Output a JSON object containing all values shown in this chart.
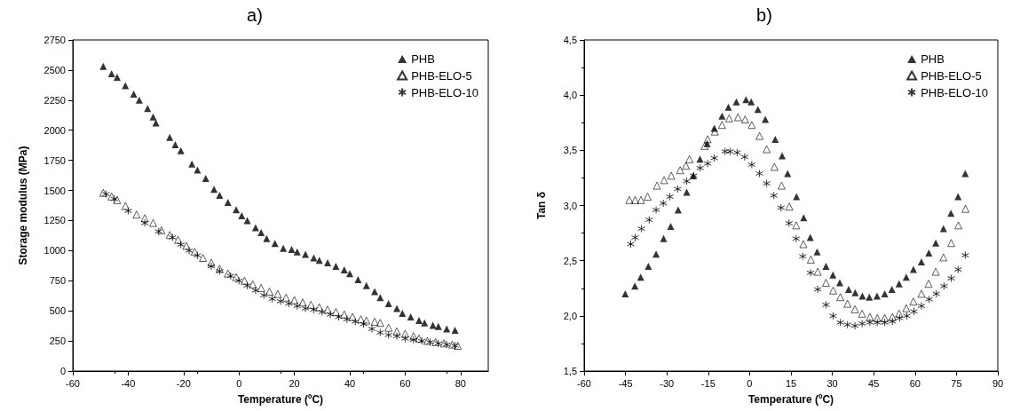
{
  "chart_data": [
    {
      "type": "scatter",
      "title": "a)",
      "xlabel": "Temperature (ºC)",
      "ylabel": "Storage modulus (MPa)",
      "xlim": [
        -60,
        90
      ],
      "xticks": [
        -60,
        -40,
        -20,
        0,
        20,
        40,
        60,
        80
      ],
      "ylim": [
        0,
        2750
      ],
      "yticks": [
        0,
        250,
        500,
        750,
        1000,
        1250,
        1500,
        1750,
        2000,
        2250,
        2500,
        2750
      ],
      "grid": false,
      "legend": "top right",
      "series": [
        {
          "name": "PHB",
          "color": "#000000",
          "marker": "triangle",
          "x": [
            -49,
            -46,
            -44,
            -41,
            -38,
            -36,
            -33,
            -31,
            -30,
            -25,
            -23,
            -21,
            -17,
            -15,
            -12,
            -9,
            -7,
            -4,
            -1,
            1,
            3,
            6,
            8,
            10,
            13,
            16,
            19,
            21,
            24,
            27,
            29,
            32,
            35,
            38,
            40,
            43,
            46,
            49,
            51,
            54,
            57,
            59,
            62,
            65,
            67,
            70,
            72,
            75,
            78
          ],
          "values": [
            2530,
            2470,
            2440,
            2370,
            2300,
            2250,
            2180,
            2110,
            2060,
            1940,
            1880,
            1830,
            1720,
            1670,
            1600,
            1510,
            1460,
            1400,
            1340,
            1290,
            1250,
            1190,
            1150,
            1100,
            1060,
            1020,
            1010,
            990,
            970,
            940,
            920,
            900,
            870,
            840,
            810,
            760,
            710,
            660,
            610,
            560,
            520,
            480,
            450,
            420,
            400,
            380,
            370,
            350,
            340
          ]
        },
        {
          "name": "PHB-ELO-5",
          "color": "#000000",
          "marker": "triangle-open",
          "x": [
            -49,
            -46,
            -44,
            -41,
            -37,
            -34,
            -31,
            -28,
            -25,
            -22,
            -19,
            -16,
            -13,
            -10,
            -7,
            -4,
            -1,
            2,
            5,
            8,
            11,
            14,
            17,
            20,
            23,
            26,
            29,
            32,
            35,
            38,
            41,
            44,
            46,
            49,
            51,
            54,
            57,
            60,
            63,
            65,
            68,
            71,
            74,
            77,
            79
          ],
          "values": [
            1480,
            1450,
            1420,
            1370,
            1300,
            1270,
            1230,
            1170,
            1130,
            1090,
            1040,
            990,
            940,
            900,
            850,
            810,
            780,
            750,
            720,
            690,
            660,
            640,
            610,
            590,
            570,
            550,
            530,
            510,
            490,
            470,
            450,
            430,
            420,
            410,
            400,
            360,
            330,
            310,
            290,
            270,
            250,
            240,
            230,
            220,
            210
          ]
        },
        {
          "name": "PHB-ELO-10",
          "color": "#000000",
          "marker": "cross",
          "x": [
            -48,
            -45,
            -40,
            -34,
            -29,
            -24,
            -21,
            -18,
            -15,
            -10,
            -7,
            -3,
            0,
            3,
            6,
            9,
            12,
            15,
            18,
            21,
            24,
            27,
            30,
            33,
            36,
            39,
            42,
            45,
            48,
            51,
            54,
            57,
            60,
            63,
            66,
            69,
            72,
            75,
            78
          ],
          "values": [
            1470,
            1430,
            1330,
            1230,
            1160,
            1110,
            1050,
            1000,
            960,
            870,
            830,
            790,
            750,
            710,
            670,
            630,
            600,
            580,
            560,
            540,
            520,
            510,
            490,
            470,
            450,
            430,
            410,
            390,
            350,
            320,
            300,
            290,
            270,
            260,
            250,
            240,
            230,
            220,
            210
          ]
        }
      ]
    },
    {
      "type": "scatter",
      "title": "b)",
      "xlabel": "Temperature (ºC)",
      "ylabel": "Tan δ",
      "xlim": [
        -60,
        90
      ],
      "xticks": [
        -60,
        -45,
        -30,
        -15,
        0,
        15,
        30,
        45,
        60,
        75,
        90
      ],
      "ylim": [
        1.5,
        4.5
      ],
      "yticks": [
        {
          "value": 1.5,
          "label": "1,5"
        },
        {
          "value": 2,
          "label": "2,0"
        },
        {
          "value": 2.5,
          "label": "2,5"
        },
        {
          "value": 3,
          "label": "3,0"
        },
        {
          "value": 3.5,
          "label": "3,5"
        },
        {
          "value": 4,
          "label": "4,0"
        },
        {
          "value": 4.5,
          "label": "4,5"
        }
      ],
      "grid": false,
      "legend": "top right",
      "series": [
        {
          "name": "PHB",
          "color": "#000000",
          "marker": "triangle",
          "x": [
            -45.1,
            -41.6,
            -39.5,
            -36.7,
            -33.9,
            -31.2,
            -28.6,
            -25.9,
            -22.8,
            -20.4,
            -18,
            -15.4,
            -12.8,
            -10,
            -7.7,
            -4.8,
            -1.3,
            0.6,
            3,
            5.7,
            9.3,
            11.8,
            13.8,
            17,
            19.6,
            22,
            24.5,
            27.7,
            30.2,
            32.7,
            35.9,
            38.3,
            40.9,
            43.4,
            46.2,
            49,
            51.6,
            54.2,
            56.8,
            59.4,
            62.3,
            65,
            67.5,
            70.3,
            73,
            75.6,
            78.2
          ],
          "values": [
            2.2,
            2.27,
            2.35,
            2.45,
            2.56,
            2.7,
            2.81,
            2.96,
            3.12,
            3.27,
            3.42,
            3.56,
            3.7,
            3.81,
            3.89,
            3.94,
            3.96,
            3.94,
            3.87,
            3.78,
            3.6,
            3.45,
            3.29,
            3.08,
            2.89,
            2.71,
            2.58,
            2.45,
            2.37,
            2.3,
            2.24,
            2.21,
            2.18,
            2.17,
            2.18,
            2.2,
            2.24,
            2.29,
            2.35,
            2.42,
            2.49,
            2.57,
            2.66,
            2.79,
            2.93,
            3.08,
            3.29
          ]
        },
        {
          "name": "PHB-ELO-5",
          "color": "#000000",
          "marker": "triangle-open",
          "x": [
            -43.6,
            -41.5,
            -39.4,
            -37,
            -33.6,
            -31,
            -28.4,
            -25.2,
            -23.1,
            -21.8,
            -16.3,
            -15.2,
            -12.6,
            -10,
            -7.4,
            -4.2,
            -1.6,
            0.8,
            3.6,
            6.2,
            9,
            11.6,
            14.4,
            16.9,
            19.5,
            22.2,
            24.7,
            27.7,
            30.3,
            32.9,
            35.5,
            38.2,
            40.8,
            43.6,
            46.3,
            49,
            51.8,
            54.2,
            56.8,
            59.4,
            62.3,
            64.9,
            67.5,
            70.3,
            73.1,
            75.7,
            78.3
          ],
          "values": [
            3.05,
            3.05,
            3.05,
            3.08,
            3.18,
            3.23,
            3.27,
            3.32,
            3.36,
            3.42,
            3.54,
            3.6,
            3.67,
            3.73,
            3.79,
            3.8,
            3.78,
            3.73,
            3.63,
            3.51,
            3.35,
            3.18,
            2.99,
            2.82,
            2.65,
            2.51,
            2.4,
            2.3,
            2.23,
            2.17,
            2.11,
            2.06,
            2.02,
            1.99,
            1.98,
            1.98,
            1.99,
            2.02,
            2.07,
            2.13,
            2.2,
            2.29,
            2.4,
            2.53,
            2.66,
            2.82,
            2.97
          ]
        },
        {
          "name": "PHB-ELO-10",
          "color": "#000000",
          "marker": "cross",
          "x": [
            -43.1,
            -41.5,
            -39.2,
            -36.4,
            -33.9,
            -31.3,
            -28.9,
            -26.1,
            -22.8,
            -20.3,
            -17.9,
            -15.2,
            -12.8,
            -8.9,
            -7.1,
            -4.5,
            -1.8,
            0.8,
            3.6,
            6.2,
            8.8,
            11.4,
            14.3,
            16.9,
            19.3,
            22.1,
            24.7,
            27.7,
            30.3,
            32.9,
            35.5,
            38.2,
            40.8,
            43.6,
            46.3,
            49,
            51.8,
            54.4,
            57,
            59.6,
            62.3,
            65.1,
            67.7,
            70.5,
            73.1,
            75.6,
            78.2
          ],
          "values": [
            2.65,
            2.71,
            2.79,
            2.87,
            2.96,
            3.02,
            3.08,
            3.15,
            3.22,
            3.27,
            3.34,
            3.38,
            3.43,
            3.49,
            3.49,
            3.48,
            3.44,
            3.37,
            3.29,
            3.2,
            3.09,
            2.98,
            2.84,
            2.7,
            2.54,
            2.39,
            2.24,
            2.1,
            2,
            1.94,
            1.92,
            1.91,
            1.93,
            1.94,
            1.94,
            1.94,
            1.95,
            1.98,
            2,
            2.04,
            2.09,
            2.15,
            2.2,
            2.27,
            2.34,
            2.42,
            2.55
          ]
        }
      ]
    }
  ]
}
